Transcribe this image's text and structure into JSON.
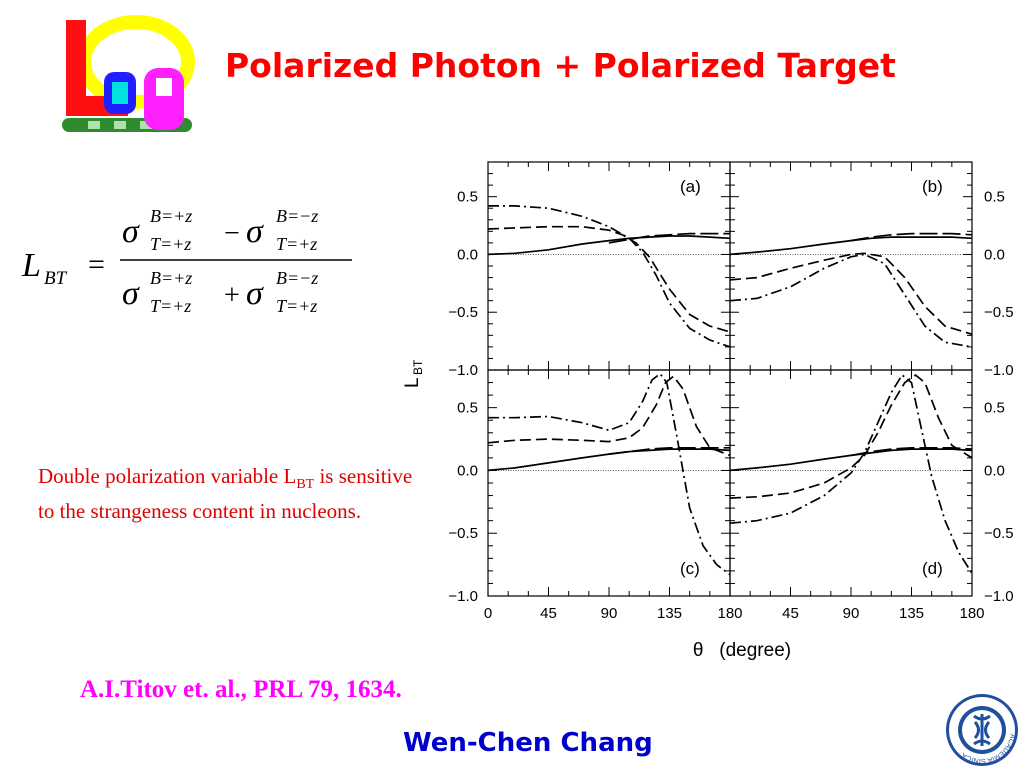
{
  "slide": {
    "title": "Polarized Photon + Polarized Target",
    "author": "Wen-Chen Chang",
    "citation": "A.I.Titov et. al., PRL 79, 1634."
  },
  "note": {
    "text_before_sub": "Double polarization variable L",
    "subscript": "BT",
    "text_after_sub": " is sensitive to the strangeness content in nucleons."
  },
  "formula": {
    "lhs": "L",
    "lhs_sub": "BT",
    "equals": "=",
    "sigma": "σ",
    "sup_plus": "B=+z",
    "sup_minus": "B=−z",
    "sub": "T=+z",
    "minus_op": "−",
    "plus_op": "+"
  },
  "logos": {
    "lgp": "lgp-logo",
    "sinica": "academia-sinica-seal",
    "sinica_text": "ACADEMIA SINICA"
  },
  "chart_data": {
    "type": "line",
    "xlabel": "θ   (degree)",
    "ylabel": "L",
    "ylabel_sub": "BT",
    "xlim": [
      0,
      180
    ],
    "ylim": [
      -1.0,
      0.8
    ],
    "x_ticks": [
      0,
      45,
      90,
      135,
      180
    ],
    "y_ticks": [
      -1.0,
      -0.5,
      0.0,
      0.5
    ],
    "y_tick_labels": [
      "−1.0",
      "−0.5",
      "0.0",
      "0.5"
    ],
    "zero_reference_line": true,
    "layout": "2x2 panels",
    "panels": [
      {
        "label": "(a)",
        "series": [
          {
            "style": "solid",
            "x": [
              0,
              20,
              45,
              70,
              90,
              105,
              120,
              135,
              150,
              165,
              180
            ],
            "y": [
              0.0,
              0.01,
              0.04,
              0.09,
              0.12,
              0.14,
              0.15,
              0.16,
              0.16,
              0.15,
              0.14
            ]
          },
          {
            "style": "dashed",
            "x": [
              0,
              20,
              45,
              70,
              90,
              100,
              110,
              120,
              135,
              150,
              165,
              180
            ],
            "y": [
              0.22,
              0.23,
              0.24,
              0.24,
              0.21,
              0.17,
              0.1,
              -0.02,
              -0.3,
              -0.52,
              -0.62,
              -0.67
            ]
          },
          {
            "style": "dash-dot",
            "x": [
              0,
              20,
              45,
              70,
              90,
              105,
              115,
              125,
              135,
              150,
              165,
              180
            ],
            "y": [
              0.42,
              0.42,
              0.4,
              0.33,
              0.24,
              0.14,
              0.02,
              -0.18,
              -0.42,
              -0.64,
              -0.74,
              -0.8
            ]
          },
          {
            "style": "long-dash",
            "x": [
              90,
              105,
              120,
              135,
              150,
              165,
              180
            ],
            "y": [
              0.1,
              0.13,
              0.16,
              0.17,
              0.18,
              0.18,
              0.18
            ]
          }
        ]
      },
      {
        "label": "(b)",
        "series": [
          {
            "style": "solid",
            "x": [
              0,
              20,
              45,
              70,
              90,
              105,
              120,
              135,
              150,
              165,
              180
            ],
            "y": [
              0.0,
              0.02,
              0.05,
              0.09,
              0.12,
              0.14,
              0.15,
              0.15,
              0.15,
              0.15,
              0.14
            ]
          },
          {
            "style": "dashed",
            "x": [
              0,
              20,
              45,
              70,
              90,
              100,
              115,
              130,
              145,
              160,
              180
            ],
            "y": [
              -0.22,
              -0.2,
              -0.12,
              -0.05,
              0.0,
              0.01,
              -0.02,
              -0.2,
              -0.45,
              -0.62,
              -0.69
            ]
          },
          {
            "style": "dash-dot",
            "x": [
              0,
              20,
              45,
              70,
              90,
              100,
              115,
              130,
              145,
              160,
              180
            ],
            "y": [
              -0.4,
              -0.38,
              -0.28,
              -0.12,
              -0.02,
              0.0,
              -0.08,
              -0.35,
              -0.62,
              -0.76,
              -0.8
            ]
          },
          {
            "style": "long-dash",
            "x": [
              90,
              105,
              120,
              135,
              150,
              165,
              180
            ],
            "y": [
              0.12,
              0.15,
              0.17,
              0.18,
              0.18,
              0.18,
              0.17
            ]
          }
        ]
      },
      {
        "label": "(c)",
        "series": [
          {
            "style": "solid",
            "x": [
              0,
              20,
              45,
              70,
              90,
              105,
              120,
              135,
              150,
              165,
              180
            ],
            "y": [
              0.0,
              0.02,
              0.06,
              0.1,
              0.13,
              0.15,
              0.16,
              0.17,
              0.17,
              0.17,
              0.16
            ]
          },
          {
            "style": "dashed",
            "x": [
              0,
              20,
              45,
              70,
              90,
              105,
              115,
              125,
              132,
              138,
              145,
              155,
              165,
              180
            ],
            "y": [
              0.22,
              0.24,
              0.25,
              0.24,
              0.23,
              0.26,
              0.34,
              0.52,
              0.7,
              0.75,
              0.65,
              0.35,
              0.18,
              0.12
            ]
          },
          {
            "style": "dash-dot",
            "x": [
              0,
              20,
              45,
              70,
              90,
              105,
              115,
              122,
              128,
              133,
              140,
              150,
              160,
              170,
              180
            ],
            "y": [
              0.42,
              0.42,
              0.43,
              0.38,
              0.32,
              0.38,
              0.55,
              0.72,
              0.77,
              0.7,
              0.3,
              -0.3,
              -0.6,
              -0.75,
              -0.83
            ]
          },
          {
            "style": "long-dash",
            "x": [
              90,
              105,
              120,
              135,
              150,
              165,
              180
            ],
            "y": [
              0.13,
              0.15,
              0.17,
              0.18,
              0.18,
              0.18,
              0.18
            ]
          }
        ]
      },
      {
        "label": "(d)",
        "series": [
          {
            "style": "solid",
            "x": [
              0,
              20,
              45,
              70,
              90,
              105,
              120,
              135,
              150,
              165,
              180
            ],
            "y": [
              0.0,
              0.02,
              0.05,
              0.09,
              0.12,
              0.14,
              0.16,
              0.17,
              0.17,
              0.17,
              0.16
            ]
          },
          {
            "style": "dashed",
            "x": [
              0,
              20,
              45,
              70,
              90,
              100,
              110,
              120,
              130,
              138,
              145,
              155,
              165,
              180
            ],
            "y": [
              -0.22,
              -0.21,
              -0.18,
              -0.1,
              0.02,
              0.12,
              0.3,
              0.52,
              0.7,
              0.76,
              0.7,
              0.42,
              0.2,
              0.1
            ]
          },
          {
            "style": "dash-dot",
            "x": [
              0,
              20,
              45,
              70,
              90,
              100,
              110,
              120,
              128,
              135,
              142,
              150,
              160,
              170,
              180
            ],
            "y": [
              -0.42,
              -0.4,
              -0.34,
              -0.2,
              -0.02,
              0.14,
              0.38,
              0.62,
              0.76,
              0.7,
              0.35,
              -0.05,
              -0.4,
              -0.65,
              -0.82
            ]
          },
          {
            "style": "long-dash",
            "x": [
              90,
              105,
              120,
              135,
              150,
              165,
              180
            ],
            "y": [
              0.12,
              0.15,
              0.17,
              0.18,
              0.18,
              0.18,
              0.17
            ]
          }
        ]
      }
    ]
  }
}
